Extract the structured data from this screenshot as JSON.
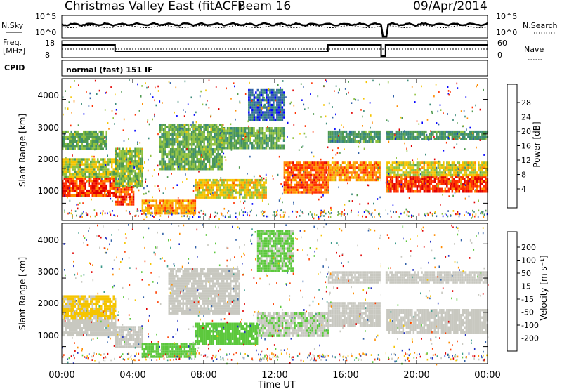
{
  "header": {
    "title": "Christmas Valley East (fitACF)",
    "beam": "Beam 16",
    "date": "09/Apr/2014"
  },
  "top_panels": {
    "nsky_label": "N.Sky",
    "nsky_ticks": [
      "10^5",
      "10^0"
    ],
    "nsearch_label": "N.Search",
    "nsearch_ticks": [
      "10^5",
      "10^0"
    ],
    "freq_label": "Freq.",
    "freq_unit": "[MHz]",
    "freq_ticks": [
      "18",
      "8"
    ],
    "nave_label": "Nave",
    "nave_ticks": [
      "60",
      "0"
    ],
    "cpid_label": "CPID",
    "cpid_value": "normal (fast) 151 IF"
  },
  "chart_data": [
    {
      "type": "heatmap",
      "name": "power",
      "ylabel": "Slant Range [km]",
      "ylim": [
        500,
        4600
      ],
      "yticks": [
        "1000",
        "2000",
        "3000",
        "4000"
      ],
      "xlim": [
        "00:00",
        "24:00"
      ],
      "colorbar": {
        "label": "Power [dB]",
        "ticks": [
          "28",
          "24",
          "20",
          "16",
          "12",
          "8",
          "4"
        ],
        "range": [
          0,
          32
        ],
        "colors": [
          "#0000ff",
          "#3060a8",
          "#3a8a78",
          "#4f9a4f",
          "#8fc13f",
          "#f5c400",
          "#ff8c00",
          "#ff3000",
          "#e00000"
        ]
      },
      "bands": [
        {
          "t0": 0.0,
          "t1": 3.0,
          "r0": 1250,
          "r1": 1750,
          "level": 27
        },
        {
          "t0": 0.0,
          "t1": 3.0,
          "r0": 1750,
          "r1": 2300,
          "level": 17
        },
        {
          "t0": 0.0,
          "t1": 2.5,
          "r0": 2600,
          "r1": 3100,
          "level": 13
        },
        {
          "t0": 3.0,
          "t1": 4.0,
          "r0": 1000,
          "r1": 1500,
          "level": 26
        },
        {
          "t0": 3.0,
          "t1": 4.5,
          "r0": 1500,
          "r1": 2600,
          "level": 15
        },
        {
          "t0": 4.5,
          "t1": 7.5,
          "r0": 700,
          "r1": 1100,
          "level": 22
        },
        {
          "t0": 7.5,
          "t1": 11.5,
          "r0": 1150,
          "r1": 1700,
          "level": 19
        },
        {
          "t0": 5.5,
          "t1": 9.0,
          "r0": 2000,
          "r1": 3300,
          "level": 14
        },
        {
          "t0": 9.0,
          "t1": 12.5,
          "r0": 2600,
          "r1": 3200,
          "level": 13
        },
        {
          "t0": 12.5,
          "t1": 15.0,
          "r0": 1300,
          "r1": 2200,
          "level": 25
        },
        {
          "t0": 15.0,
          "t1": 18.0,
          "r0": 1700,
          "r1": 2200,
          "level": 23
        },
        {
          "t0": 15.0,
          "t1": 18.0,
          "r0": 2800,
          "r1": 3100,
          "level": 11
        },
        {
          "t0": 18.3,
          "t1": 24.0,
          "r0": 1350,
          "r1": 1800,
          "level": 27
        },
        {
          "t0": 18.3,
          "t1": 24.0,
          "r0": 1800,
          "r1": 2200,
          "level": 18
        },
        {
          "t0": 18.3,
          "t1": 24.0,
          "r0": 2850,
          "r1": 3100,
          "level": 11
        },
        {
          "t0": 10.5,
          "t1": 12.5,
          "r0": 3400,
          "r1": 4300,
          "level": 6
        }
      ]
    },
    {
      "type": "heatmap",
      "name": "velocity",
      "ylabel": "Slant Range [km]",
      "ylim": [
        500,
        4600
      ],
      "yticks": [
        "1000",
        "2000",
        "3000",
        "4000"
      ],
      "xlim": [
        "00:00",
        "24:00"
      ],
      "colorbar": {
        "label": "Velocity [m s⁻¹]",
        "ticks": [
          "200",
          "100",
          "50",
          "15",
          "-15",
          "-50",
          "-100",
          "-200"
        ],
        "range": [
          -250,
          250
        ],
        "colors": [
          "#e00000",
          "#ff4000",
          "#ff8c00",
          "#f5c400",
          "#c8c8c0",
          "#c8c8c0",
          "#5cc83c",
          "#3a9a8a",
          "#3060a8",
          "#2030c0"
        ]
      },
      "bands": [
        {
          "t0": 0.0,
          "t1": 3.0,
          "r0": 1300,
          "r1": 1800,
          "level": 0
        },
        {
          "t0": 0.0,
          "t1": 3.0,
          "r0": 1800,
          "r1": 2500,
          "level": -60
        },
        {
          "t0": 3.0,
          "t1": 4.5,
          "r0": 1000,
          "r1": 1600,
          "level": 0
        },
        {
          "t0": 4.5,
          "t1": 7.5,
          "r0": 700,
          "r1": 1100,
          "level": 70
        },
        {
          "t0": 7.5,
          "t1": 11.0,
          "r0": 1100,
          "r1": 1700,
          "level": 70
        },
        {
          "t0": 6.0,
          "t1": 10.0,
          "r0": 2000,
          "r1": 3300,
          "level": -10
        },
        {
          "t0": 11.0,
          "t1": 15.0,
          "r0": 1300,
          "r1": 2000,
          "level": 40
        },
        {
          "t0": 15.0,
          "t1": 18.0,
          "r0": 1600,
          "r1": 2300,
          "level": 0
        },
        {
          "t0": 18.3,
          "t1": 24.0,
          "r0": 1400,
          "r1": 2100,
          "level": 0
        },
        {
          "t0": 15.0,
          "t1": 24.0,
          "r0": 2900,
          "r1": 3200,
          "level": 5
        },
        {
          "t0": 11.0,
          "t1": 13.0,
          "r0": 3200,
          "r1": 4400,
          "level": 60
        }
      ]
    }
  ],
  "x_axis": {
    "ticks": [
      "00:00",
      "04:00",
      "08:00",
      "12:00",
      "16:00",
      "20:00",
      "00:00"
    ],
    "label": "Time UT"
  }
}
